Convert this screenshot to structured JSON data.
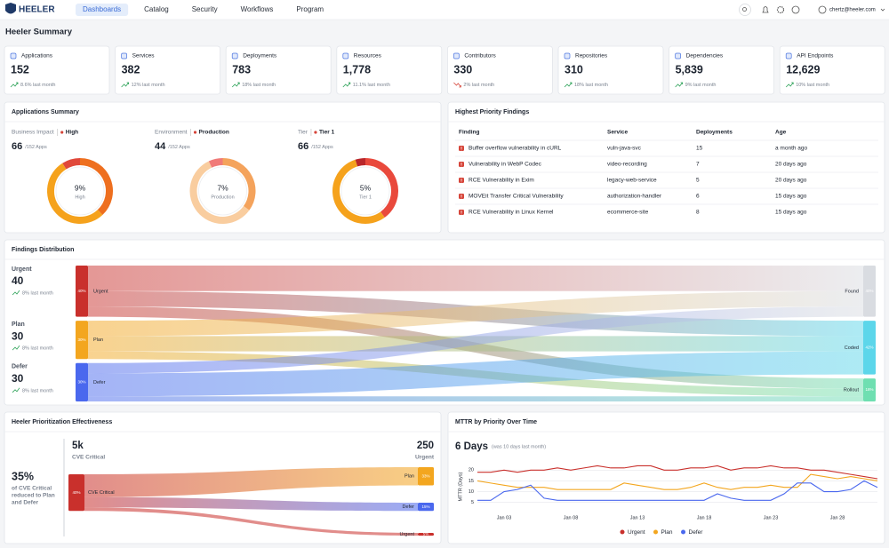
{
  "nav": {
    "brand": "HEELER",
    "tabs": [
      "Dashboards",
      "Catalog",
      "Security",
      "Workflows",
      "Program"
    ],
    "active_tab": "Dashboards",
    "user": "chertz@heeler.com"
  },
  "page_title": "Heeler Summary",
  "stats": [
    {
      "label": "Applications",
      "value": "152",
      "change": "8.6% last month",
      "trend": "up"
    },
    {
      "label": "Services",
      "value": "382",
      "change": "12% last month",
      "trend": "up"
    },
    {
      "label": "Deployments",
      "value": "783",
      "change": "18% last month",
      "trend": "up"
    },
    {
      "label": "Resources",
      "value": "1,778",
      "change": "11.1% last month",
      "trend": "up"
    },
    {
      "label": "Contributors",
      "value": "330",
      "change": "2% last month",
      "trend": "down"
    },
    {
      "label": "Repositories",
      "value": "310",
      "change": "18% last month",
      "trend": "up"
    },
    {
      "label": "Dependencies",
      "value": "5,839",
      "change": "9% last month",
      "trend": "up"
    },
    {
      "label": "API Endpoints",
      "value": "12,629",
      "change": "10% last month",
      "trend": "up"
    }
  ],
  "applications_summary": {
    "title": "Applications Summary",
    "donuts": [
      {
        "group": "Business Impact",
        "filter": "High",
        "count": 66,
        "total": "/152 Apps",
        "center": "9%",
        "segments": [
          9,
          38,
          53
        ],
        "colors": [
          "#e0483a",
          "#ee6f1f",
          "#f5a21c"
        ]
      },
      {
        "group": "Environment",
        "filter": "Production",
        "count": 44,
        "total": "/152 Apps",
        "center": "7%",
        "segments": [
          7,
          35,
          58
        ],
        "colors": [
          "#f07a78",
          "#f4a35c",
          "#f9cd9f"
        ]
      },
      {
        "group": "Tier",
        "filter": "Tier 1",
        "count": 66,
        "total": "/152 Apps",
        "center": "5%",
        "segments": [
          5,
          40,
          55
        ],
        "colors": [
          "#b9262a",
          "#e9493c",
          "#f5a21c"
        ]
      }
    ]
  },
  "priority_findings": {
    "title": "Highest Priority Findings",
    "columns": [
      "Finding",
      "Service",
      "Deployments",
      "Age"
    ],
    "rows": [
      [
        "Buffer overflow vulnerability in cURL",
        "vuln-java-svc",
        15,
        "a month ago"
      ],
      [
        "Vulnerability in WebP Codec",
        "video-recording",
        7,
        "20 days ago"
      ],
      [
        "RCE Vulnerability in Exim",
        "legacy-web-service",
        5,
        "20 days ago"
      ],
      [
        "MOVEit Transfer Critical Vulnerability",
        "authorization-handler",
        6,
        "15 days ago"
      ],
      [
        "RCE Vulnerability in Linux Kernel",
        "ecommerce-site",
        8,
        "15 days ago"
      ]
    ]
  },
  "findings_distribution": {
    "title": "Findings Distribution",
    "sources": [
      {
        "name": "Urgent",
        "count": 40,
        "change": "8% last month",
        "value": 40,
        "value_label": "40%",
        "color": "#c9302c",
        "flows": [
          20,
          12,
          8
        ]
      },
      {
        "name": "Plan",
        "count": 30,
        "change": "8% last month",
        "value": 30,
        "value_label": "30%",
        "color": "#f3a61f",
        "flows": [
          12,
          12,
          6
        ]
      },
      {
        "name": "Defer",
        "count": 30,
        "change": "8% last month",
        "value": 30,
        "value_label": "30%",
        "color": "#4a68ee",
        "flows": [
          8,
          18,
          4
        ]
      }
    ],
    "targets": [
      {
        "name": "Found",
        "value": 40,
        "value_label": "40%",
        "color": "#d9dce1"
      },
      {
        "name": "Coded",
        "value": 42,
        "value_label": "42%",
        "color": "#5cd6ea"
      },
      {
        "name": "Rollout",
        "value": 18,
        "value_label": "18%",
        "color": "#6fdfb1"
      }
    ]
  },
  "prioritization": {
    "title": "Heeler Prioritization Effectiveness",
    "headline": "35%",
    "headline_text": [
      "of CVE Critical",
      "reduced to Plan",
      "and Defer"
    ],
    "left_total": "5k",
    "left_caption": "CVE Critical",
    "right_total": "250",
    "right_caption": "Urgent",
    "source": {
      "name": "CVE Critical",
      "value": 40,
      "value_label": "40%",
      "color": "#c9302c"
    },
    "targets": [
      {
        "name": "Plan",
        "value": 33,
        "value_label": "33%",
        "color": "#f3a61f"
      },
      {
        "name": "Defer",
        "value": 15,
        "value_label": "15%",
        "color": "#4a68ee"
      },
      {
        "name": "Urgent",
        "value": 5,
        "value_label": "5%",
        "color": "#c9302c"
      }
    ]
  },
  "mttr": {
    "type": "line",
    "title": "MTTR by Priority Over Time",
    "headline": "6 Days",
    "subtitle": "(was 10 days last month)",
    "y_label": "MTTR (Days)",
    "categories": [
      null,
      null,
      "Jan 03",
      null,
      null,
      null,
      null,
      "Jan 08",
      null,
      null,
      null,
      null,
      "Jan 13",
      null,
      null,
      null,
      null,
      "Jan 18",
      null,
      null,
      null,
      null,
      "Jan 23",
      null,
      null,
      null,
      null,
      "Jan 28",
      null,
      null,
      null
    ],
    "ylim": [
      2,
      23
    ],
    "yticks": [
      5,
      10,
      15,
      20
    ],
    "grid": true,
    "series": [
      {
        "name": "Urgent",
        "color": "#c9302c",
        "values": [
          19,
          19,
          20,
          19,
          20,
          20,
          21,
          20,
          21,
          22,
          21,
          21,
          22,
          22,
          20,
          20,
          21,
          21,
          22,
          20,
          21,
          21,
          22,
          21,
          21,
          20,
          20,
          19,
          18,
          17,
          16
        ]
      },
      {
        "name": "Plan",
        "color": "#f3a61f",
        "values": [
          15,
          14,
          13,
          12,
          12,
          12,
          11,
          11,
          11,
          11,
          11,
          14,
          13,
          12,
          11,
          11,
          12,
          14,
          12,
          11,
          12,
          12,
          13,
          12,
          12,
          18,
          17,
          16,
          17,
          16,
          15
        ]
      },
      {
        "name": "Defer",
        "color": "#4a68ee",
        "values": [
          6,
          6,
          10,
          11,
          13,
          7,
          6,
          6,
          6,
          6,
          6,
          6,
          6,
          6,
          6,
          6,
          6,
          6,
          9,
          7,
          6,
          6,
          6,
          9,
          14,
          14,
          10,
          10,
          11,
          15,
          12
        ]
      }
    ]
  }
}
